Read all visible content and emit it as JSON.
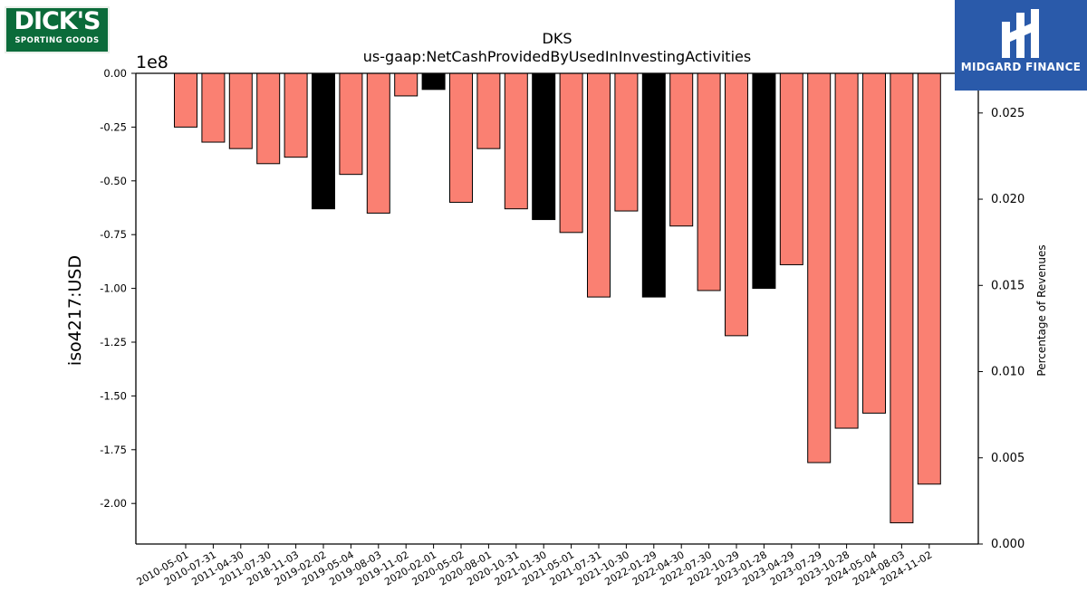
{
  "logos": {
    "left": {
      "line1": "DICK'S",
      "line2": "SPORTING GOODS"
    },
    "right": {
      "text": "MIDGARD FINANCE"
    }
  },
  "chart_data": {
    "type": "bar",
    "title": "DKS",
    "subtitle": "us-gaap:NetCashProvidedByUsedInInvestingActivities",
    "ylabel": "iso4217:USD",
    "y_offset_label": "1e8",
    "y2label": "Percentage of Revenues",
    "ylim": [
      -2.2,
      0
    ],
    "y2lim": [
      0,
      0.0273
    ],
    "yticks": [
      "0.00",
      "-0.25",
      "-0.50",
      "-0.75",
      "-1.00",
      "-1.25",
      "-1.50",
      "-1.75",
      "-2.00"
    ],
    "y2ticks": [
      "0.000",
      "0.005",
      "0.010",
      "0.015",
      "0.020",
      "0.025"
    ],
    "categories": [
      "2010-05-01",
      "2010-07-31",
      "2011-04-30",
      "2011-07-30",
      "2018-11-03",
      "2019-02-02",
      "2019-05-04",
      "2019-08-03",
      "2019-11-02",
      "2020-02-01",
      "2020-05-02",
      "2020-08-01",
      "2020-10-31",
      "2021-01-30",
      "2021-05-01",
      "2021-07-31",
      "2021-10-30",
      "2022-01-29",
      "2022-04-30",
      "2022-07-30",
      "2022-10-29",
      "2023-01-28",
      "2023-04-29",
      "2023-07-29",
      "2023-10-28",
      "2024-05-04",
      "2024-08-03",
      "2024-11-02"
    ],
    "values": [
      -0.25,
      -0.32,
      -0.35,
      -0.42,
      -0.39,
      -0.63,
      -0.47,
      -0.65,
      -0.105,
      -0.075,
      -0.6,
      -0.35,
      -0.63,
      -0.68,
      -0.74,
      -1.04,
      -0.64,
      -1.04,
      -0.71,
      -1.01,
      -1.22,
      -1.0,
      -0.89,
      -1.81,
      -1.65,
      -1.58,
      -2.09,
      -1.91
    ],
    "bar_colors": [
      "#fa8072",
      "#fa8072",
      "#fa8072",
      "#fa8072",
      "#fa8072",
      "#000000",
      "#fa8072",
      "#fa8072",
      "#fa8072",
      "#000000",
      "#fa8072",
      "#fa8072",
      "#fa8072",
      "#000000",
      "#fa8072",
      "#fa8072",
      "#fa8072",
      "#000000",
      "#fa8072",
      "#fa8072",
      "#fa8072",
      "#000000",
      "#fa8072",
      "#fa8072",
      "#fa8072",
      "#fa8072",
      "#fa8072",
      "#fa8072"
    ],
    "grid": false
  }
}
